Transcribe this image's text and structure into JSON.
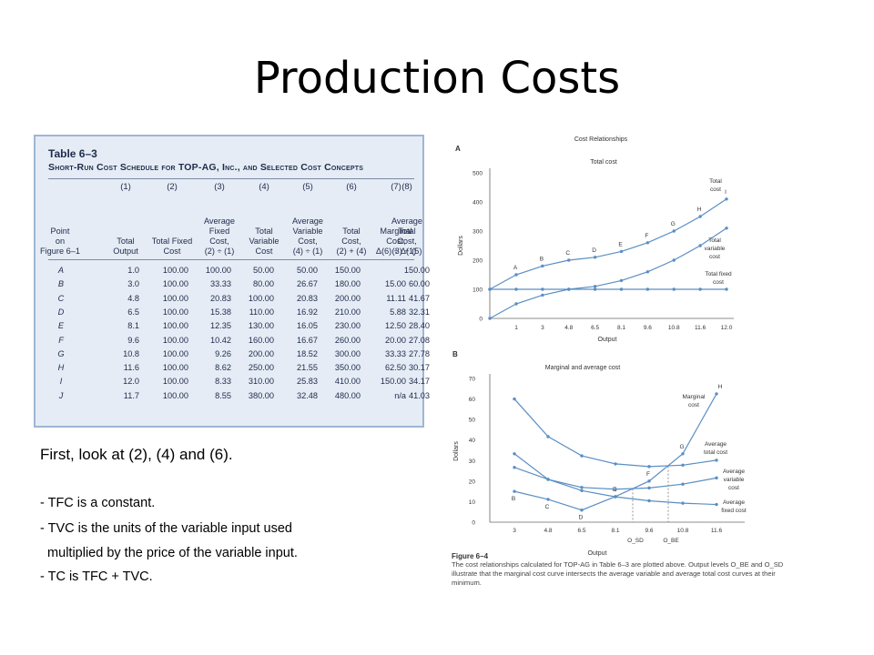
{
  "slide": {
    "title": "Production Costs"
  },
  "cost_table": {
    "title": "Table 6–3",
    "subtitle": "Short-Run Cost Schedule for TOP-AG, Inc., and Selected Cost Concepts",
    "column_numbers": [
      "(1)",
      "(2)",
      "(3)",
      "(4)",
      "(5)",
      "(6)",
      "(7)",
      "(8)"
    ],
    "headers": [
      "Point\non\nFigure 6–1",
      "Total\nOutput",
      "Total Fixed\nCost",
      "Average\nFixed\nCost,\n(2) ÷ (1)",
      "Total\nVariable\nCost",
      "Average\nVariable\nCost,\n(4) ÷ (1)",
      "Total\nCost,\n(2) + (4)",
      "Marginal\nCost,\nΔ(6) ÷ Δ(1)",
      "Average\nTotal\nCost,\n(3) + (5)"
    ],
    "rows": [
      [
        "A",
        "1.0",
        "100.00",
        "100.00",
        "50.00",
        "50.00",
        "150.00",
        "",
        "150.00"
      ],
      [
        "B",
        "3.0",
        "100.00",
        "33.33",
        "80.00",
        "26.67",
        "180.00",
        "15.00",
        "60.00"
      ],
      [
        "C",
        "4.8",
        "100.00",
        "20.83",
        "100.00",
        "20.83",
        "200.00",
        "11.11",
        "41.67"
      ],
      [
        "D",
        "6.5",
        "100.00",
        "15.38",
        "110.00",
        "16.92",
        "210.00",
        "5.88",
        "32.31"
      ],
      [
        "E",
        "8.1",
        "100.00",
        "12.35",
        "130.00",
        "16.05",
        "230.00",
        "12.50",
        "28.40"
      ],
      [
        "F",
        "9.6",
        "100.00",
        "10.42",
        "160.00",
        "16.67",
        "260.00",
        "20.00",
        "27.08"
      ],
      [
        "G",
        "10.8",
        "100.00",
        "9.26",
        "200.00",
        "18.52",
        "300.00",
        "33.33",
        "27.78"
      ],
      [
        "H",
        "11.6",
        "100.00",
        "8.62",
        "250.00",
        "21.55",
        "350.00",
        "62.50",
        "30.17"
      ],
      [
        "I",
        "12.0",
        "100.00",
        "8.33",
        "310.00",
        "25.83",
        "410.00",
        "150.00",
        "34.17"
      ],
      [
        "J",
        "11.7",
        "100.00",
        "8.55",
        "380.00",
        "32.48",
        "480.00",
        "n/a",
        "41.03"
      ]
    ]
  },
  "notes": {
    "heading": "First, look at (2), (4) and (6).",
    "lines": [
      "- TFC is a constant.",
      "- TVC is the units of the variable input used",
      "  multiplied by the price of the variable input.",
      "- TC is TFC + TVC."
    ]
  },
  "figure": {
    "label": "Figure 6–4",
    "caption": "The cost relationships calculated for TOP-AG in Table 6–3 are plotted above. Output levels O_BE and O_SD illustrate that the marginal cost curve intersects the average variable and average total cost curves at their minimum."
  },
  "chart_data": [
    {
      "type": "line",
      "panel": "A",
      "title": "Cost Relationships",
      "subtitle": "Total cost",
      "xlabel": "Output",
      "ylabel": "Dollars",
      "x_ticks": [
        "1",
        "3",
        "4.8",
        "6.5",
        "8.1",
        "9.6",
        "10.8",
        "11.6",
        "12.0"
      ],
      "x": [
        1,
        3,
        4.8,
        6.5,
        8.1,
        9.6,
        10.8,
        11.6,
        12.0
      ],
      "ylim": [
        0,
        500
      ],
      "y_ticks": [
        0,
        100,
        200,
        300,
        400,
        500
      ],
      "grid": false,
      "series": [
        {
          "name": "Total cost",
          "values": [
            150,
            180,
            200,
            210,
            230,
            260,
            300,
            350,
            410
          ],
          "point_labels": [
            "A",
            "B",
            "C",
            "D",
            "E",
            "F",
            "G",
            "H",
            "I"
          ]
        },
        {
          "name": "Total variable cost",
          "values": [
            50,
            80,
            100,
            110,
            130,
            160,
            200,
            250,
            310
          ]
        },
        {
          "name": "Total fixed cost",
          "values": [
            100,
            100,
            100,
            100,
            100,
            100,
            100,
            100,
            100
          ]
        }
      ],
      "start_points": {
        "Total cost": 100,
        "Total variable cost": 0
      }
    },
    {
      "type": "line",
      "panel": "B",
      "title": "Marginal and average cost",
      "xlabel": "Output",
      "ylabel": "Dollars",
      "x_ticks": [
        "3",
        "4.8",
        "6.5",
        "8.1",
        "9.6",
        "10.8",
        "11.6"
      ],
      "x": [
        3,
        4.8,
        6.5,
        8.1,
        9.6,
        10.8,
        11.6
      ],
      "ylim": [
        0,
        70
      ],
      "y_ticks": [
        0,
        10,
        20,
        30,
        40,
        50,
        60,
        70
      ],
      "grid": false,
      "series": [
        {
          "name": "Marginal cost",
          "values": [
            15.0,
            11.11,
            5.88,
            12.5,
            20.0,
            33.33,
            62.5
          ],
          "point_labels": [
            "B",
            "C",
            "D",
            "E",
            "F",
            "G",
            "H"
          ]
        },
        {
          "name": "Average total cost",
          "values": [
            60.0,
            41.67,
            32.31,
            28.4,
            27.08,
            27.78,
            30.17
          ]
        },
        {
          "name": "Average variable cost",
          "values": [
            26.67,
            20.83,
            16.92,
            16.05,
            16.67,
            18.52,
            21.55
          ]
        },
        {
          "name": "Average fixed cost",
          "values": [
            33.33,
            20.83,
            15.38,
            12.35,
            10.42,
            9.26,
            8.62
          ]
        }
      ],
      "annotations": [
        "O_SD",
        "O_BE"
      ]
    }
  ]
}
